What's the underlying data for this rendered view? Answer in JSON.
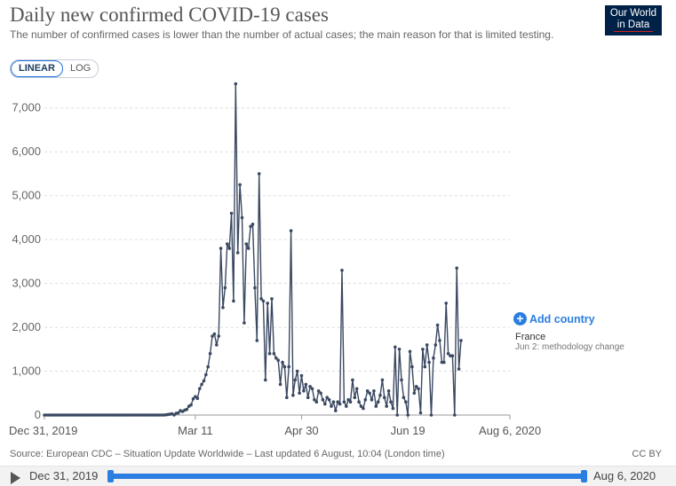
{
  "header": {
    "title": "Daily new confirmed COVID-19 cases",
    "subtitle": "The number of confirmed cases is lower than the number of actual cases; the main reason for that is limited testing.",
    "logo_line1": "Our World",
    "logo_line2": "in Data"
  },
  "controls": {
    "linear_label": "LINEAR",
    "log_label": "LOG",
    "add_country_label": "Add country"
  },
  "annotation": {
    "series_label": "France",
    "note": "Jun 2: methodology change"
  },
  "footer": {
    "source": "Source: European CDC – Situation Update Worldwide – Last updated 6 August, 10:04 (London time)",
    "license": "CC BY"
  },
  "timeline": {
    "start_label": "Dec 31, 2019",
    "end_label": "Aug 6, 2020"
  },
  "colors": {
    "line": "#3a4861",
    "accent": "#2a7de1",
    "grid": "#dddddd"
  },
  "chart_data": {
    "type": "line",
    "title": "Daily new confirmed COVID-19 cases",
    "xlabel": "",
    "ylabel": "",
    "x_range": [
      "2019-12-31",
      "2020-08-06"
    ],
    "ylim": [
      0,
      7500
    ],
    "y_ticks": [
      0,
      1000,
      2000,
      3000,
      4000,
      5000,
      6000,
      7000
    ],
    "y_tick_labels": [
      "0",
      "1,000",
      "2,000",
      "3,000",
      "4,000",
      "5,000",
      "6,000",
      "7,000"
    ],
    "x_ticks": [
      "2019-12-31",
      "2020-03-11",
      "2020-04-30",
      "2020-06-19",
      "2020-08-06"
    ],
    "x_tick_labels": [
      "Dec 31, 2019",
      "Mar 11",
      "Apr 30",
      "Jun 19",
      "Aug 6, 2020"
    ],
    "grid": "horizontal dashed",
    "series": [
      {
        "name": "France",
        "start_date": "2019-12-31",
        "values": [
          0,
          0,
          0,
          0,
          0,
          0,
          0,
          0,
          0,
          0,
          0,
          0,
          0,
          0,
          0,
          0,
          0,
          0,
          0,
          0,
          0,
          0,
          0,
          0,
          0,
          0,
          0,
          0,
          0,
          0,
          0,
          0,
          0,
          0,
          0,
          0,
          0,
          0,
          0,
          0,
          0,
          0,
          0,
          0,
          0,
          0,
          0,
          0,
          0,
          0,
          0,
          0,
          0,
          0,
          0,
          0,
          0,
          4,
          12,
          18,
          30,
          2,
          40,
          48,
          100,
          80,
          110,
          130,
          200,
          230,
          370,
          420,
          380,
          600,
          700,
          780,
          920,
          1100,
          1400,
          1800,
          1850,
          1600,
          1800,
          3800,
          2450,
          2900,
          3900,
          3800,
          4600,
          2600,
          7550,
          3700,
          5250,
          4500,
          2100,
          3900,
          3800,
          4300,
          4350,
          2900,
          1700,
          5500,
          2650,
          2600,
          800,
          2550,
          1400,
          2650,
          1400,
          1300,
          1250,
          700,
          1200,
          1100,
          400,
          1100,
          4200,
          450,
          800,
          1000,
          500,
          900,
          550,
          700,
          400,
          650,
          600,
          350,
          300,
          550,
          500,
          350,
          250,
          400,
          350,
          200,
          300,
          100,
          300,
          250,
          3300,
          300,
          200,
          350,
          300,
          800,
          400,
          600,
          300,
          200,
          150,
          350,
          550,
          500,
          350,
          550,
          200,
          300,
          450,
          800,
          400,
          200,
          550,
          300,
          150,
          1550,
          0,
          1500,
          800,
          400,
          300,
          0,
          1450,
          1100,
          500,
          650,
          600,
          50,
          1500,
          1100,
          1600,
          1200,
          0,
          1300,
          1600,
          2050,
          1700,
          1200,
          1200,
          2550,
          1400,
          1350,
          1350,
          0,
          3350,
          1050,
          1700
        ]
      }
    ]
  }
}
